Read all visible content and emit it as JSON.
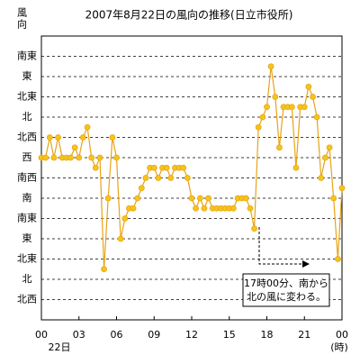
{
  "chart_data": {
    "type": "line",
    "title": "2007年8月22日の風向の推移(日立市役所)",
    "ylabel": "風向",
    "xlabel": "(時)",
    "x_sublabel": "22日",
    "annotation": [
      "17時00分、南から",
      "北の風に変わる。"
    ],
    "xlim": [
      0,
      24
    ],
    "xticks": [
      {
        "value": 0,
        "label": "00"
      },
      {
        "value": 3,
        "label": "03"
      },
      {
        "value": 6,
        "label": "06"
      },
      {
        "value": 9,
        "label": "09"
      },
      12,
      15,
      18,
      21,
      {
        "value": 24,
        "label": "00"
      }
    ],
    "ylim": [
      -1,
      13
    ],
    "yticks": [
      {
        "value": 0,
        "label": "北西"
      },
      {
        "value": 1,
        "label": "北"
      },
      {
        "value": 2,
        "label": "北東"
      },
      {
        "value": 3,
        "label": "東"
      },
      {
        "value": 4,
        "label": "南東"
      },
      {
        "value": 5,
        "label": "南"
      },
      {
        "value": 6,
        "label": "南西"
      },
      {
        "value": 7,
        "label": "西"
      },
      {
        "value": 8,
        "label": "北西"
      },
      {
        "value": 9,
        "label": "北"
      },
      {
        "value": 10,
        "label": "北東"
      },
      {
        "value": 11,
        "label": "東"
      },
      {
        "value": 12,
        "label": "南東"
      }
    ],
    "grid": true,
    "x": [
      0,
      0.33,
      0.67,
      1,
      1.33,
      1.67,
      2,
      2.33,
      2.67,
      3,
      3.33,
      3.67,
      4,
      4.33,
      4.67,
      5,
      5.33,
      5.67,
      6,
      6.33,
      6.67,
      7,
      7.33,
      7.67,
      8,
      8.33,
      8.67,
      9,
      9.33,
      9.67,
      10,
      10.33,
      10.67,
      11,
      11.33,
      11.67,
      12,
      12.33,
      12.67,
      13,
      13.33,
      13.67,
      14,
      14.33,
      14.67,
      15,
      15.33,
      15.67,
      16,
      16.33,
      16.67,
      17,
      17.33,
      17.67,
      18,
      18.33,
      18.67,
      19,
      19.33,
      19.67,
      20,
      20.33,
      20.67,
      21,
      21.33,
      21.67,
      22,
      22.33,
      22.67,
      23,
      23.33,
      23.67,
      24
    ],
    "series": [
      {
        "name": "風向",
        "color": "#e8a317",
        "values": [
          7,
          7,
          8,
          7,
          8,
          7,
          7,
          7,
          7.5,
          7,
          8,
          8.5,
          7,
          6.5,
          7,
          1.5,
          5,
          8,
          7,
          3,
          4,
          4.5,
          4.5,
          5,
          5.5,
          6,
          6.5,
          6.5,
          6,
          6.5,
          6.5,
          6,
          6.5,
          6.5,
          6.5,
          6,
          5,
          4.5,
          5,
          4.5,
          5,
          4.5,
          4.5,
          4.5,
          4.5,
          4.5,
          4.5,
          5,
          5,
          5,
          4.5,
          3.5,
          8.5,
          9,
          9.5,
          11.5,
          10,
          7.5,
          9.5,
          9.5,
          9.5,
          6.5,
          9.5,
          9.5,
          10.5,
          10,
          9,
          6,
          7,
          7.5,
          5,
          2,
          5.5
        ]
      }
    ]
  }
}
